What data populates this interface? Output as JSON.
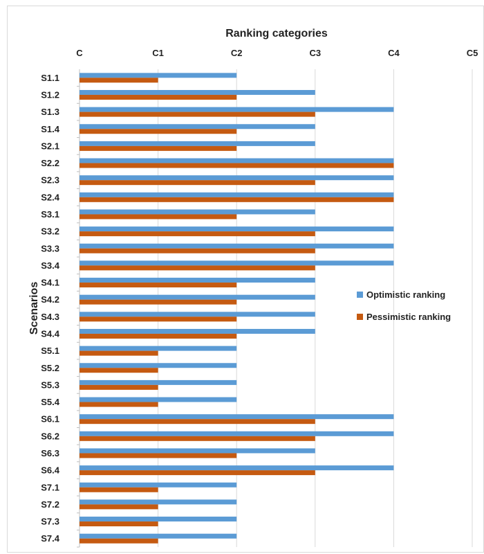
{
  "chart_data": {
    "type": "bar",
    "orientation": "horizontal",
    "title": "",
    "xlabel": "Ranking categories",
    "ylabel": "Scenarios",
    "x_tick_labels": [
      "C",
      "C1",
      "C2",
      "C3",
      "C4",
      "C5"
    ],
    "xlim": [
      0,
      5
    ],
    "grid": true,
    "legend_position": "right",
    "categories": [
      "S1.1",
      "S1.2",
      "S1.3",
      "S1.4",
      "S2.1",
      "S2.2",
      "S2.3",
      "S2.4",
      "S3.1",
      "S3.2",
      "S3.3",
      "S3.4",
      "S4.1",
      "S4.2",
      "S4.3",
      "S4.4",
      "S5.1",
      "S5.2",
      "S5.3",
      "S5.4",
      "S6.1",
      "S6.2",
      "S6.3",
      "S6.4",
      "S7.1",
      "S7.2",
      "S7.3",
      "S7.4"
    ],
    "series": [
      {
        "name": "Optimistic ranking",
        "color": "#5b9bd5",
        "values": [
          2,
          3,
          4,
          3,
          3,
          4,
          4,
          4,
          3,
          4,
          4,
          4,
          3,
          3,
          3,
          3,
          2,
          2,
          2,
          2,
          4,
          4,
          3,
          4,
          2,
          2,
          2,
          2
        ]
      },
      {
        "name": "Pessimistic ranking",
        "color": "#c55a11",
        "values": [
          1,
          2,
          3,
          2,
          2,
          4,
          3,
          4,
          2,
          3,
          3,
          3,
          2,
          2,
          2,
          2,
          1,
          1,
          1,
          1,
          3,
          3,
          2,
          3,
          1,
          1,
          1,
          1
        ]
      }
    ]
  }
}
